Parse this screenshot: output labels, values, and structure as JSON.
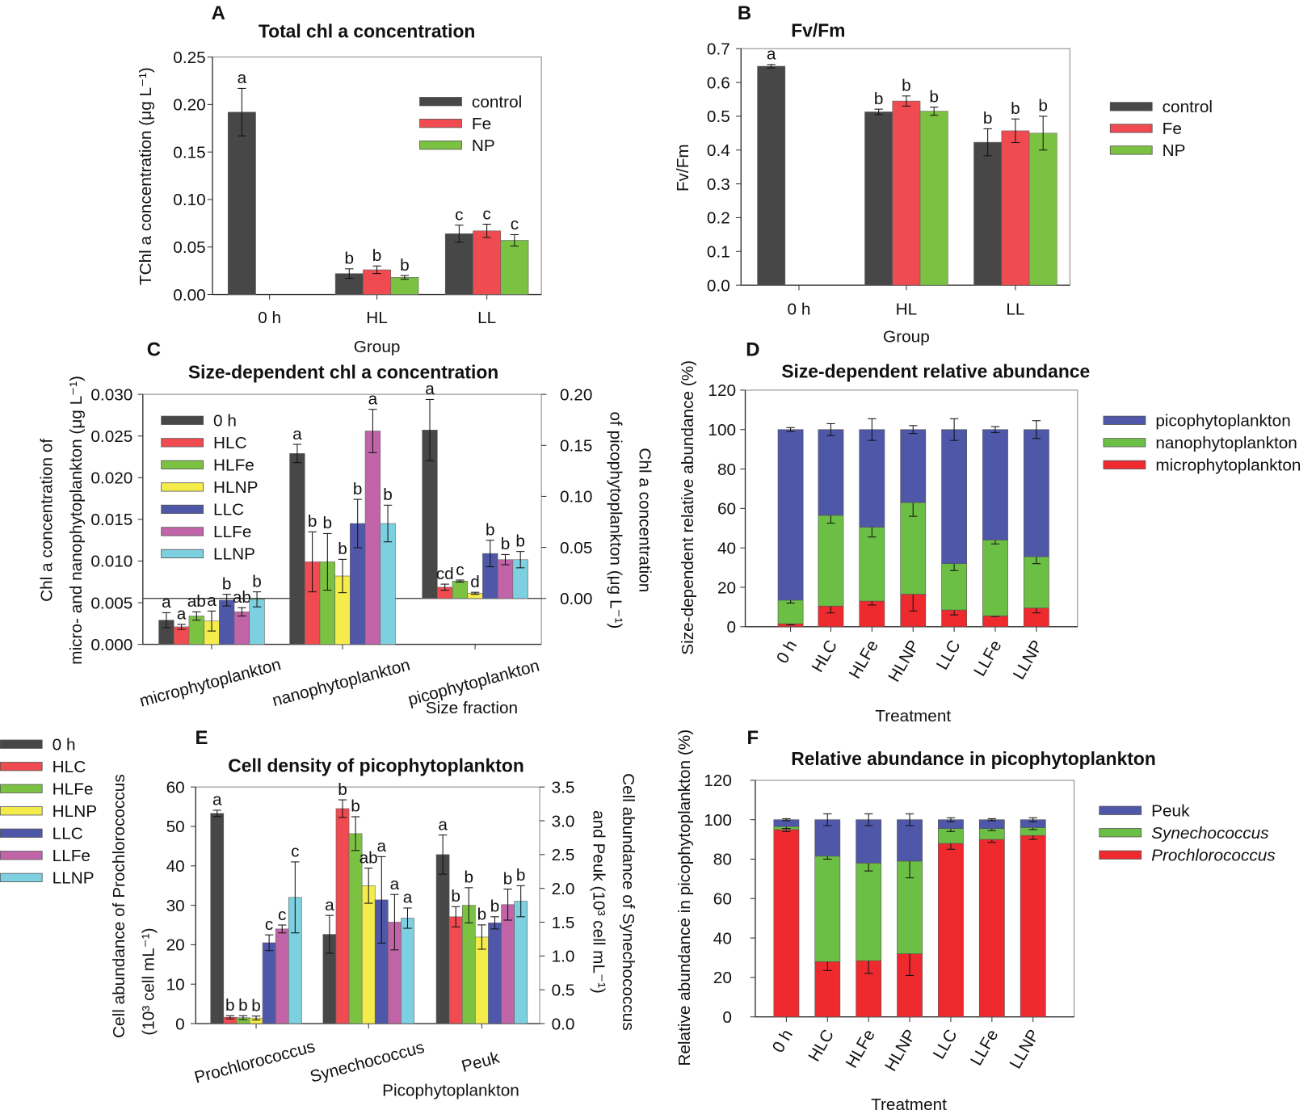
{
  "colors": {
    "control": "#474747",
    "Fe": "#ef4b50",
    "NP": "#7cc242",
    "HLNP": "#f4ec4b",
    "LLC": "#4f57a8",
    "LLFe": "#c164a8",
    "LLNP": "#7dd0e0",
    "pico": "#4f57a8",
    "nano": "#6cbf45",
    "micro": "#ee2a2f"
  },
  "chart_data": [
    {
      "panel": "A",
      "type": "bar",
      "title": "Total chl a concentration",
      "xlabel": "Group",
      "ylabel": [
        "TChl a concentration (μg L⁻¹)"
      ],
      "ylim": [
        0,
        0.25
      ],
      "yticks": [
        "0.00",
        "0.05",
        "0.10",
        "0.15",
        "0.20",
        "0.25"
      ],
      "categories": [
        "0 h",
        "HL",
        "LL"
      ],
      "legend": "top-right",
      "series": [
        {
          "name": "control",
          "color": "#474747",
          "values": [
            0.192,
            0.022,
            0.064
          ],
          "errors": [
            0.025,
            0.005,
            0.009
          ],
          "letters": [
            "a",
            "b",
            "c"
          ]
        },
        {
          "name": "Fe",
          "color": "#ef4b50",
          "values": [
            null,
            0.026,
            0.067
          ],
          "errors": [
            null,
            0.004,
            0.007
          ],
          "letters": [
            null,
            "b",
            "c"
          ]
        },
        {
          "name": "NP",
          "color": "#7cc242",
          "values": [
            null,
            0.018,
            0.057
          ],
          "errors": [
            null,
            0.002,
            0.006
          ],
          "letters": [
            null,
            "b",
            "c"
          ]
        }
      ]
    },
    {
      "panel": "B",
      "type": "bar",
      "title": "Fv/Fm",
      "xlabel": "Group",
      "ylabel": [
        "Fv/Fm"
      ],
      "ylim": [
        0,
        0.7
      ],
      "yticks": [
        "0.0",
        "0.1",
        "0.2",
        "0.3",
        "0.4",
        "0.5",
        "0.6",
        "0.7"
      ],
      "categories": [
        "0 h",
        "HL",
        "LL"
      ],
      "legend": "outside-right",
      "series": [
        {
          "name": "control",
          "color": "#474747",
          "values": [
            0.648,
            0.513,
            0.423
          ],
          "errors": [
            0.005,
            0.008,
            0.04
          ],
          "letters": [
            "a",
            "b",
            "b"
          ]
        },
        {
          "name": "Fe",
          "color": "#ef4b50",
          "values": [
            null,
            0.545,
            0.457
          ],
          "errors": [
            null,
            0.015,
            0.035
          ],
          "letters": [
            null,
            "b",
            "b"
          ]
        },
        {
          "name": "NP",
          "color": "#7cc242",
          "values": [
            null,
            0.515,
            0.45
          ],
          "errors": [
            null,
            0.012,
            0.05
          ],
          "letters": [
            null,
            "b",
            "b"
          ]
        }
      ]
    },
    {
      "panel": "C",
      "type": "bar",
      "title": "Size-dependent chl a concentration",
      "xlabel": "Size fraction",
      "ylabel": [
        "Chl a concentration of",
        "micro- and nanophytoplankton (μg L⁻¹)"
      ],
      "y2label": [
        "Chl a concentration",
        "of picophytoplankton (μg L⁻¹)"
      ],
      "ylim": [
        0,
        0.03
      ],
      "yticks": [
        "0.000",
        "0.005",
        "0.010",
        "0.015",
        "0.020",
        "0.025",
        "0.030"
      ],
      "y2lim": [
        -0.045,
        0.2
      ],
      "y2ticks": [
        "0.00",
        "0.05",
        "0.10",
        "0.15",
        "0.20"
      ],
      "categories": [
        "microphytoplankton",
        "nanophytoplankton",
        "picophytoplankton"
      ],
      "category_axis": [
        "left",
        "left",
        "right"
      ],
      "legend": "top-left",
      "series": [
        {
          "name": "0 h",
          "color": "#474747",
          "values": [
            0.0029,
            0.0229,
            0.165
          ],
          "errors": [
            0.0009,
            0.0011,
            0.03
          ],
          "letters": [
            "a",
            "a",
            "a"
          ]
        },
        {
          "name": "HLC",
          "color": "#ef4b50",
          "values": [
            0.0021,
            0.0099,
            0.011
          ],
          "errors": [
            0.0003,
            0.0036,
            0.003
          ],
          "letters": [
            "a",
            "b",
            "cd"
          ]
        },
        {
          "name": "HLFe",
          "color": "#7cc242",
          "values": [
            0.0034,
            0.0099,
            0.017
          ],
          "errors": [
            0.0005,
            0.0034,
            0.001
          ],
          "letters": [
            "ab",
            "b",
            "c"
          ]
        },
        {
          "name": "HLNP",
          "color": "#f4ec4b",
          "values": [
            0.0028,
            0.0082,
            0.005
          ],
          "errors": [
            0.0012,
            0.002,
            0.001
          ],
          "letters": [
            "a",
            "b",
            "d"
          ]
        },
        {
          "name": "LLC",
          "color": "#4f57a8",
          "values": [
            0.0053,
            0.0145,
            0.044
          ],
          "errors": [
            0.0007,
            0.0029,
            0.013
          ],
          "letters": [
            "b",
            "b",
            "b"
          ]
        },
        {
          "name": "LLFe",
          "color": "#c164a8",
          "values": [
            0.0039,
            0.0256,
            0.038
          ],
          "errors": [
            0.0005,
            0.0026,
            0.005
          ],
          "letters": [
            "ab",
            "a",
            "b"
          ]
        },
        {
          "name": "LLNP",
          "color": "#7dd0e0",
          "values": [
            0.0054,
            0.0145,
            0.038
          ],
          "errors": [
            0.0009,
            0.0022,
            0.008
          ],
          "letters": [
            "b",
            "b",
            "b"
          ]
        }
      ]
    },
    {
      "panel": "D",
      "type": "bar",
      "stacked": true,
      "title": "Size-dependent relative abundance",
      "xlabel": "Treatment",
      "ylabel": [
        "Size-dependent relative abundance (%)"
      ],
      "ylim": [
        0,
        120
      ],
      "yticks": [
        "0",
        "20",
        "40",
        "60",
        "80",
        "100",
        "120"
      ],
      "categories": [
        "0 h",
        "HLC",
        "HLFe",
        "HLNP",
        "LLC",
        "LLFe",
        "LLNP"
      ],
      "legend": "outside-right",
      "series": [
        {
          "name": "microphytoplankton",
          "color": "#ee2a2f",
          "values": [
            1.5,
            10.5,
            13,
            16.5,
            8.5,
            5.5,
            9.5
          ],
          "errors": [
            0.5,
            3.5,
            2,
            8.5,
            2.5,
            0.3,
            2.5
          ]
        },
        {
          "name": "nanophytoplankton",
          "color": "#6cbf45",
          "values": [
            12,
            46,
            37.5,
            46.5,
            23.5,
            38.5,
            26
          ],
          "errors": [
            1.5,
            4,
            5,
            7,
            3.5,
            2,
            3.5
          ]
        },
        {
          "name": "picophytoplankton",
          "color": "#4f57a8",
          "values": [
            86.5,
            43.5,
            49.5,
            37,
            68,
            56,
            64.5
          ],
          "errors": [
            1,
            3,
            5.5,
            2,
            5.5,
            1.5,
            4.5
          ]
        }
      ]
    },
    {
      "panel": "E",
      "type": "bar",
      "title": "Cell density of picophytoplankton",
      "xlabel": "Picophytoplankton",
      "ylabel": [
        "Cell abundance of Prochlorococcus",
        "(10³ cell mL⁻¹)"
      ],
      "y2label": [
        "Cell abundance of Synechococcus",
        "and Peuk (10³ cell mL⁻¹)"
      ],
      "ylim": [
        0,
        60
      ],
      "yticks": [
        "0",
        "10",
        "20",
        "30",
        "40",
        "50",
        "60"
      ],
      "y2lim": [
        0,
        3.5
      ],
      "y2ticks": [
        "0.0",
        "0.5",
        "1.0",
        "1.5",
        "2.0",
        "2.5",
        "3.0",
        "3.5"
      ],
      "categories": [
        "Prochlorococcus",
        "Synechococcus",
        "Peuk"
      ],
      "category_axis": [
        "left",
        "right",
        "right"
      ],
      "legend": "outside-left",
      "series": [
        {
          "name": "0 h",
          "color": "#474747",
          "values": [
            53.3,
            1.32,
            2.5
          ],
          "errors": [
            0.8,
            0.28,
            0.29
          ],
          "letters": [
            "a",
            "a",
            "a"
          ]
        },
        {
          "name": "HLC",
          "color": "#ef4b50",
          "values": [
            1.6,
            3.18,
            1.58
          ],
          "errors": [
            0.4,
            0.13,
            0.15
          ],
          "letters": [
            "b",
            "b",
            "b"
          ]
        },
        {
          "name": "HLFe",
          "color": "#7cc242",
          "values": [
            1.5,
            2.81,
            1.75
          ],
          "errors": [
            0.5,
            0.25,
            0.26
          ],
          "letters": [
            "b",
            "b",
            "b"
          ]
        },
        {
          "name": "HLNP",
          "color": "#f4ec4b",
          "values": [
            1.4,
            2.04,
            1.28
          ],
          "errors": [
            0.5,
            0.26,
            0.18
          ],
          "letters": [
            "b",
            "ab",
            "b"
          ]
        },
        {
          "name": "LLC",
          "color": "#4f57a8",
          "values": [
            20.5,
            1.83,
            1.49
          ],
          "errors": [
            2,
            0.64,
            0.09
          ],
          "letters": [
            "c",
            "a",
            "b"
          ]
        },
        {
          "name": "LLFe",
          "color": "#c164a8",
          "values": [
            24,
            1.5,
            1.76
          ],
          "errors": [
            1,
            0.41,
            0.23
          ],
          "letters": [
            "c",
            "a",
            "b"
          ]
        },
        {
          "name": "LLNP",
          "color": "#7dd0e0",
          "values": [
            32,
            1.56,
            1.81
          ],
          "errors": [
            9,
            0.15,
            0.23
          ],
          "letters": [
            "c",
            "a",
            "b"
          ]
        }
      ]
    },
    {
      "panel": "F",
      "type": "bar",
      "stacked": true,
      "title": "Relative abundance  in picophytoplankton",
      "xlabel": "Treatment",
      "ylabel": [
        "Relative abundance  in picophytoplankton (%)"
      ],
      "ylim": [
        0,
        120
      ],
      "yticks": [
        "0",
        "20",
        "40",
        "60",
        "80",
        "100",
        "120"
      ],
      "categories": [
        "0 h",
        "HLC",
        "HLFe",
        "HLNP",
        "LLC",
        "LLFe",
        "LLNP"
      ],
      "legend": "outside-right",
      "series": [
        {
          "name": "Prochlorococcus",
          "color": "#ee2a2f",
          "values": [
            95,
            28,
            28.5,
            32,
            88,
            90,
            92
          ],
          "errors": [
            1,
            4.5,
            6.5,
            11,
            3,
            1.5,
            2
          ]
        },
        {
          "name": "Synechococcus",
          "color": "#6cbf45",
          "values": [
            1.5,
            53.5,
            49.5,
            47,
            7.5,
            5.5,
            4
          ],
          "errors": [
            1,
            1.5,
            4,
            8.5,
            1.5,
            1,
            1
          ]
        },
        {
          "name": "Peuk",
          "color": "#4f57a8",
          "values": [
            3.5,
            18.5,
            22,
            21,
            4.5,
            4.5,
            4
          ],
          "errors": [
            0.5,
            3,
            3,
            3,
            1,
            0.5,
            1
          ]
        }
      ]
    }
  ]
}
